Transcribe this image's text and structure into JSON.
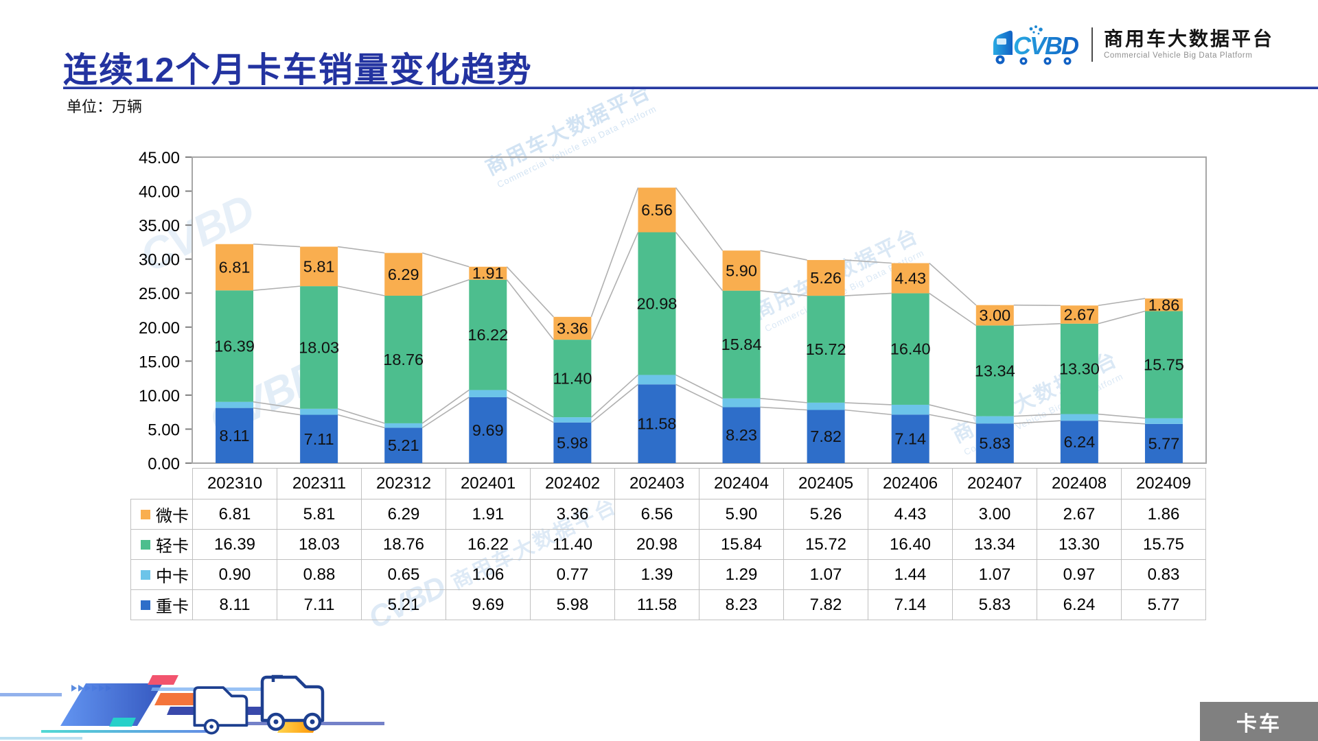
{
  "page": {
    "title": "连续12个月卡车销量变化趋势",
    "unit_label": "单位：万辆"
  },
  "logo": {
    "brand_cn": "商用车大数据平台",
    "brand_en": "Commercial Vehicle Big Data Platform",
    "mark_letters": "CVBD"
  },
  "watermark": {
    "text_cn": "商用车大数据平台",
    "text_en": "Commercial Vehicle Big Data Platform",
    "mark_letters": "CVBD"
  },
  "footer_tab": {
    "label": "卡车"
  },
  "colors": {
    "title_blue": "#2333A0",
    "plot_border": "#A6A6A6",
    "tick": "#808080",
    "connector": "#B0B0B0",
    "table_border": "#C0C0C0",
    "tab_bg": "#808080",
    "tab_text": "#FFFFFF",
    "label_text": "#111111"
  },
  "chart_data": {
    "type": "bar",
    "stacked": true,
    "title": "连续12个月卡车销量变化趋势",
    "unit": "万辆",
    "categories": [
      "202310",
      "202311",
      "202312",
      "202401",
      "202402",
      "202403",
      "202404",
      "202405",
      "202406",
      "202407",
      "202408",
      "202409"
    ],
    "series": [
      {
        "key": "micro-truck",
        "name": "微卡",
        "color": "#F9AE4F",
        "values": [
          6.81,
          5.81,
          6.29,
          1.91,
          3.36,
          6.56,
          5.9,
          5.26,
          4.43,
          3.0,
          2.67,
          1.86
        ]
      },
      {
        "key": "light-truck",
        "name": "轻卡",
        "color": "#4DBE8E",
        "values": [
          16.39,
          18.03,
          18.76,
          16.22,
          11.4,
          20.98,
          15.84,
          15.72,
          16.4,
          13.34,
          13.3,
          15.75
        ]
      },
      {
        "key": "medium-truck",
        "name": "中卡",
        "color": "#6CC4E9",
        "values": [
          0.9,
          0.88,
          0.65,
          1.06,
          0.77,
          1.39,
          1.29,
          1.07,
          1.44,
          1.07,
          0.97,
          0.83
        ]
      },
      {
        "key": "heavy-truck",
        "name": "重卡",
        "color": "#2E6EC9",
        "values": [
          8.11,
          7.11,
          5.21,
          9.69,
          5.98,
          11.58,
          8.23,
          7.82,
          7.14,
          5.83,
          6.24,
          5.77
        ]
      }
    ],
    "stack_order_bottom_to_top": [
      "heavy-truck",
      "medium-truck",
      "light-truck",
      "micro-truck"
    ],
    "labeled_series": [
      "heavy-truck",
      "light-truck",
      "micro-truck"
    ],
    "value_format": "0.00",
    "ylim": [
      0,
      45
    ],
    "ytick_step": 5,
    "grid": false,
    "legend_position": "table-left",
    "connector_lines": true
  }
}
